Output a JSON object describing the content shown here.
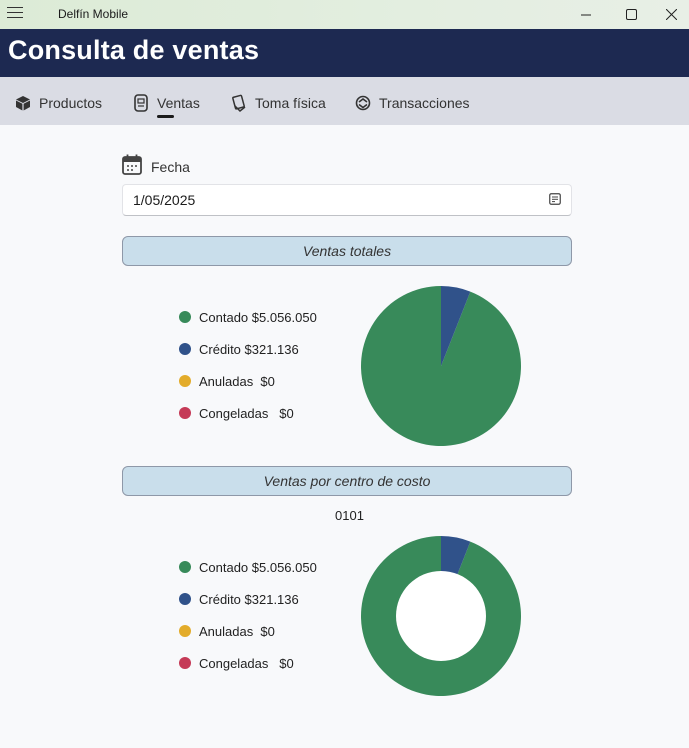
{
  "window": {
    "title": "Delfín Mobile"
  },
  "header": {
    "title": "Consulta de ventas"
  },
  "tabs": [
    {
      "label": "Productos",
      "icon": "cube-icon"
    },
    {
      "label": "Ventas",
      "icon": "receipt-icon"
    },
    {
      "label": "Toma física",
      "icon": "clipboard-hand-icon"
    },
    {
      "label": "Transacciones",
      "icon": "exchange-icon"
    }
  ],
  "active_tab": "Ventas",
  "fecha": {
    "label": "Fecha",
    "value": "1/05/2025"
  },
  "colors": {
    "contado": "#388a5a",
    "credito": "#30528a",
    "anuladas": "#e3ac2b",
    "congeladas": "#c53a57"
  },
  "ventas_totales": {
    "title": "Ventas totales",
    "legend": [
      {
        "label": "Contado $5.056.050",
        "color": "#388a5a"
      },
      {
        "label": "Crédito $321.136",
        "color": "#30528a"
      },
      {
        "label": "Anuladas  $0",
        "color": "#e3ac2b"
      },
      {
        "label": "Congeladas   $0",
        "color": "#c53a57"
      }
    ]
  },
  "ventas_centro": {
    "title": "Ventas por centro de costo",
    "centro": "0101",
    "legend": [
      {
        "label": "Contado $5.056.050",
        "color": "#388a5a"
      },
      {
        "label": "Crédito $321.136",
        "color": "#30528a"
      },
      {
        "label": "Anuladas  $0",
        "color": "#e3ac2b"
      },
      {
        "label": "Congeladas   $0",
        "color": "#c53a57"
      }
    ]
  },
  "chart_data": [
    {
      "type": "pie",
      "title": "Ventas totales",
      "categories": [
        "Contado",
        "Crédito",
        "Anuladas",
        "Congeladas"
      ],
      "values": [
        5056050,
        321136,
        0,
        0
      ],
      "colors": [
        "#388a5a",
        "#30528a",
        "#e3ac2b",
        "#c53a57"
      ]
    },
    {
      "type": "pie",
      "title": "0101",
      "categories": [
        "Contado",
        "Crédito",
        "Anuladas",
        "Congeladas"
      ],
      "values": [
        5056050,
        321136,
        0,
        0
      ],
      "colors": [
        "#388a5a",
        "#30528a",
        "#e3ac2b",
        "#c53a57"
      ],
      "donut": true
    }
  ]
}
